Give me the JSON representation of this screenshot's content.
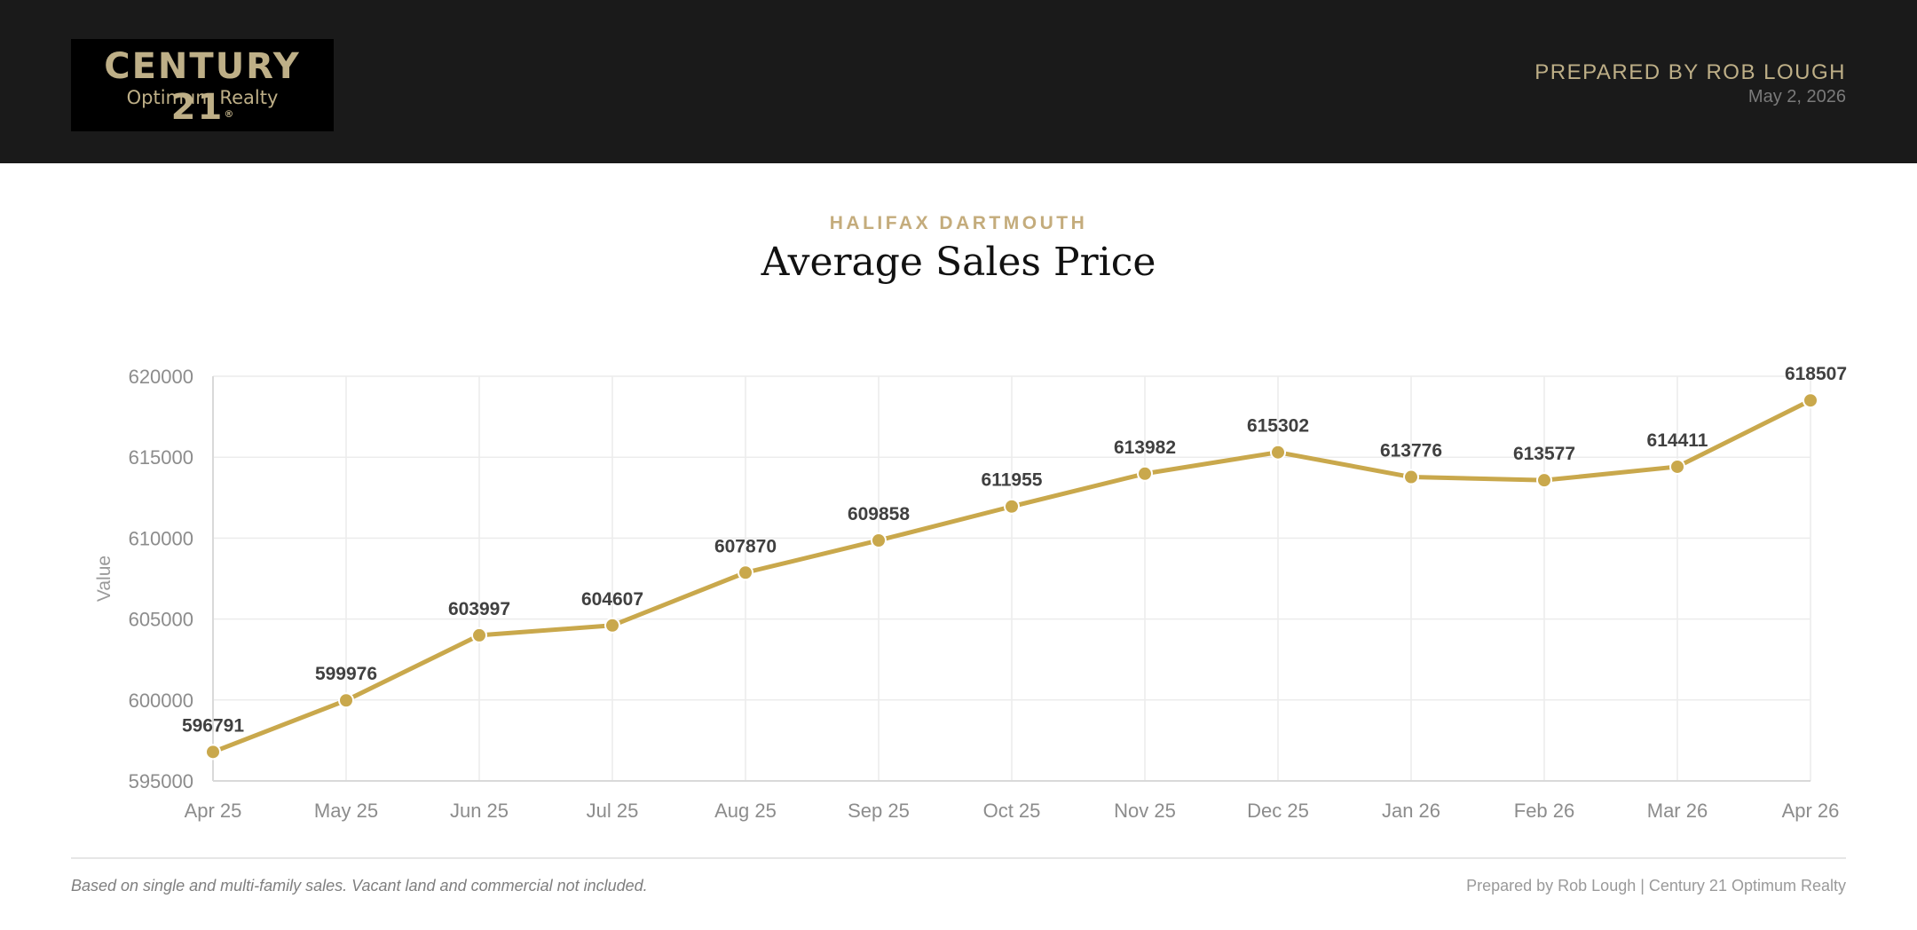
{
  "header": {
    "logo_main": "CENTURY 21",
    "logo_reg": "®",
    "logo_sub": "Optimum Realty",
    "prepared_by": "PREPARED BY ROB LOUGH",
    "date": "May 2, 2026"
  },
  "region": "HALIFAX DARTMOUTH",
  "title": "Average Sales Price",
  "colors": {
    "accent": "#c9a84c",
    "brand_gold": "#beaf87",
    "header_bg": "#1a1a1a"
  },
  "chart_data": {
    "type": "line",
    "ylabel": "Value",
    "xlabel": "",
    "categories": [
      "Apr 25",
      "May 25",
      "Jun 25",
      "Jul 25",
      "Aug 25",
      "Sep 25",
      "Oct 25",
      "Nov 25",
      "Dec 25",
      "Jan 26",
      "Feb 26",
      "Mar 26",
      "Apr 26"
    ],
    "values": [
      596791,
      599976,
      603997,
      604607,
      607870,
      609858,
      611955,
      613982,
      615302,
      613776,
      613577,
      614411,
      618507
    ],
    "ylim": [
      595000,
      620000
    ],
    "yticks": [
      595000,
      600000,
      605000,
      610000,
      615000,
      620000
    ],
    "grid": true,
    "data_labels": true,
    "legend": "none"
  },
  "footer": {
    "note": "Based on single and multi-family sales. Vacant land and commercial not included.",
    "credit": "Prepared by Rob Lough | Century 21 Optimum Realty"
  }
}
